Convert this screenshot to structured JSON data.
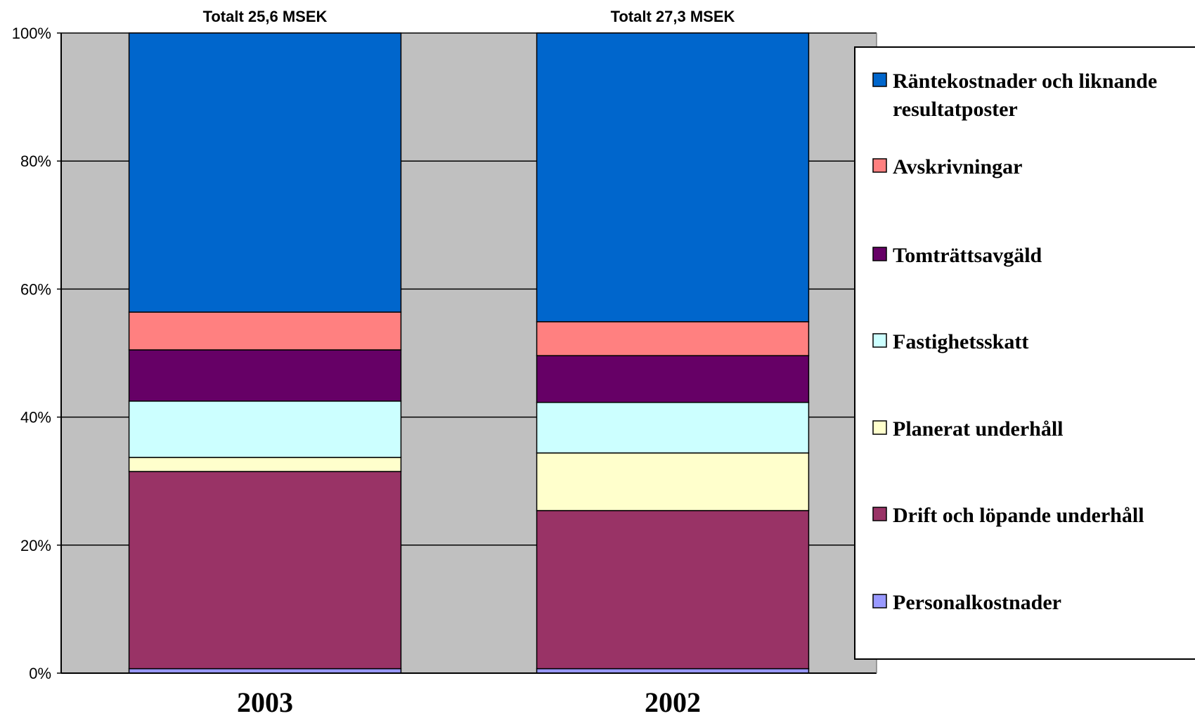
{
  "chart_data": {
    "type": "bar",
    "stacked": true,
    "normalized": true,
    "categories": [
      "2003",
      "2002"
    ],
    "top_labels": [
      "Totalt  25,6 MSEK",
      "Totalt  27,3 MSEK"
    ],
    "ylim": [
      0,
      100
    ],
    "yticks": [
      "0%",
      "20%",
      "40%",
      "60%",
      "80%",
      "100%"
    ],
    "grid": true,
    "legend_position": "right",
    "series": [
      {
        "name": "Personalkostnader",
        "values": [
          0.7,
          0.7
        ],
        "color": "#9999ff"
      },
      {
        "name": "Drift och löpande underhåll",
        "values": [
          30.8,
          24.7
        ],
        "color": "#993366"
      },
      {
        "name": "Planerat underhåll",
        "values": [
          2.2,
          9.0
        ],
        "color": "#ffffcc"
      },
      {
        "name": "Fastighetsskatt",
        "values": [
          8.8,
          7.9
        ],
        "color": "#ccffff"
      },
      {
        "name": "Tomträttsavgäld",
        "values": [
          8.0,
          7.3
        ],
        "color": "#660066"
      },
      {
        "name": "Avskrivningar",
        "values": [
          5.9,
          5.3
        ],
        "color": "#ff8080"
      },
      {
        "name": "Räntekostnader och liknande resultatposter",
        "values": [
          43.6,
          45.1
        ],
        "color": "#0066cc"
      }
    ]
  },
  "legend": {
    "items": [
      {
        "lines": [
          "Räntekostnader och liknande",
          "resultatposter"
        ],
        "color": "#0066cc"
      },
      {
        "lines": [
          "Avskrivningar"
        ],
        "color": "#ff8080"
      },
      {
        "lines": [
          "Tomträttsavgäld"
        ],
        "color": "#660066"
      },
      {
        "lines": [
          "Fastighetsskatt"
        ],
        "color": "#ccffff"
      },
      {
        "lines": [
          "Planerat underhåll"
        ],
        "color": "#ffffcc"
      },
      {
        "lines": [
          "Drift och löpande underhåll"
        ],
        "color": "#993366"
      },
      {
        "lines": [
          "Personalkostnader"
        ],
        "color": "#9999ff"
      }
    ]
  },
  "colors": {
    "plot_background": "#c0c0c0",
    "grid": "#000000"
  }
}
